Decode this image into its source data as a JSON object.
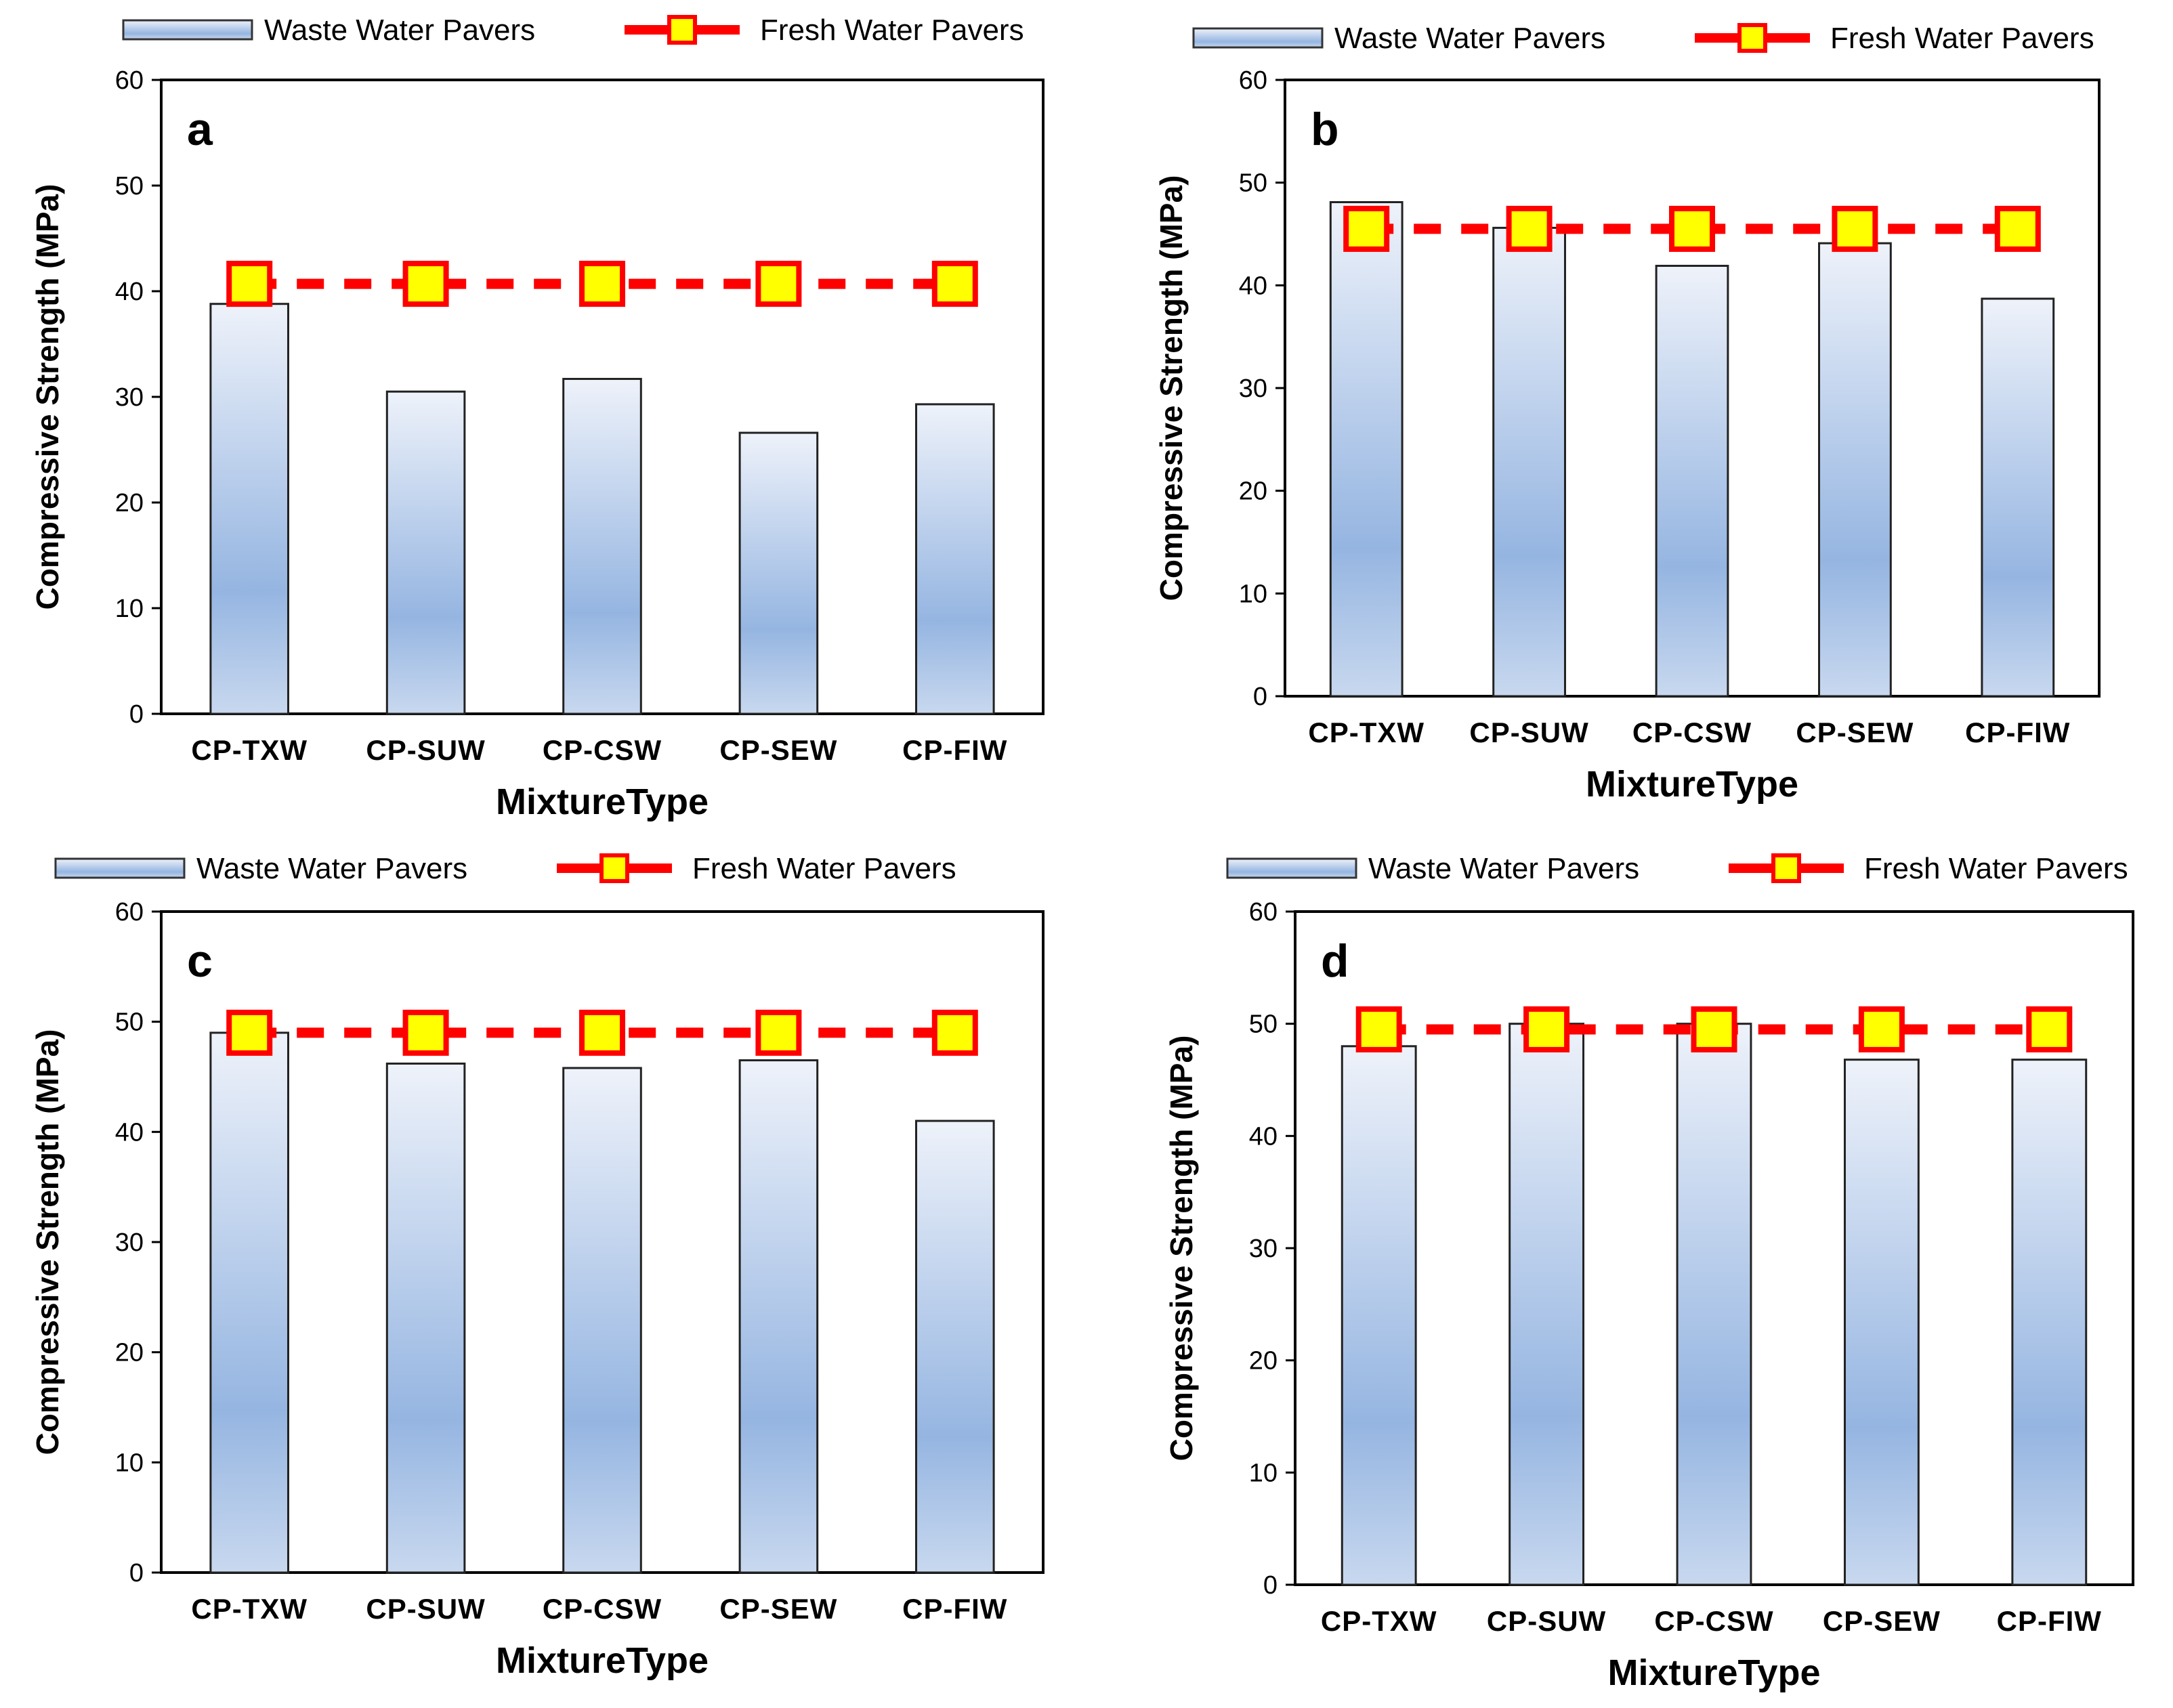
{
  "legend": {
    "bar_label": "Waste Water Pavers",
    "line_label": "Fresh Water Pavers"
  },
  "colors": {
    "bar_top": "#eef2fa",
    "bar_mid": "#95b5e1",
    "bar_bottom": "#c8d8ef",
    "line": "#ff0000",
    "marker_fill": "#ffff00",
    "marker_edge": "#ff0000"
  },
  "chart_data": [
    {
      "type": "bar",
      "panel_label": "a",
      "categories": [
        "CP-TXW",
        "CP-SUW",
        "CP-CSW",
        "CP-SEW",
        "CP-FIW"
      ],
      "series": [
        {
          "name": "Waste Water Pavers",
          "values": [
            38.8,
            30.5,
            31.7,
            26.6,
            29.3
          ]
        },
        {
          "name": "Fresh Water Pavers",
          "values": [
            40.7,
            40.7,
            40.7,
            40.7,
            40.7
          ]
        }
      ],
      "xlabel": "MixtureType",
      "ylabel": "Compressive Strength (MPa)",
      "ylim": [
        0,
        60
      ],
      "yticks": [
        0,
        10,
        20,
        30,
        40,
        50,
        60
      ],
      "grid": false,
      "legend_position": "top"
    },
    {
      "type": "bar",
      "panel_label": "b",
      "categories": [
        "CP-TXW",
        "CP-SUW",
        "CP-CSW",
        "CP-SEW",
        "CP-FIW"
      ],
      "series": [
        {
          "name": "Waste Water Pavers",
          "values": [
            48.1,
            45.6,
            41.9,
            44.1,
            38.7
          ]
        },
        {
          "name": "Fresh Water Pavers",
          "values": [
            45.5,
            45.5,
            45.5,
            45.5,
            45.5
          ]
        }
      ],
      "xlabel": "MixtureType",
      "ylabel": "Compressive Strength (MPa)",
      "ylim": [
        0,
        60
      ],
      "yticks": [
        0,
        10,
        20,
        30,
        40,
        50,
        60
      ],
      "grid": false,
      "legend_position": "top"
    },
    {
      "type": "bar",
      "panel_label": "c",
      "categories": [
        "CP-TXW",
        "CP-SUW",
        "CP-CSW",
        "CP-SEW",
        "CP-FIW"
      ],
      "series": [
        {
          "name": "Waste Water Pavers",
          "values": [
            49.0,
            46.2,
            45.8,
            46.5,
            41.0
          ]
        },
        {
          "name": "Fresh Water Pavers",
          "values": [
            49.0,
            49.0,
            49.0,
            49.0,
            49.0
          ]
        }
      ],
      "xlabel": "MixtureType",
      "ylabel": "Compressive Strength (MPa)",
      "ylim": [
        0,
        60
      ],
      "yticks": [
        0,
        10,
        20,
        30,
        40,
        50,
        60
      ],
      "grid": false,
      "legend_position": "top"
    },
    {
      "type": "bar",
      "panel_label": "d",
      "categories": [
        "CP-TXW",
        "CP-SUW",
        "CP-CSW",
        "CP-SEW",
        "CP-FIW"
      ],
      "series": [
        {
          "name": "Waste Water Pavers",
          "values": [
            48.0,
            50.0,
            50.0,
            46.8,
            46.8
          ]
        },
        {
          "name": "Fresh Water Pavers",
          "values": [
            49.5,
            49.5,
            49.5,
            49.5,
            49.5
          ]
        }
      ],
      "xlabel": "MixtureType",
      "ylabel": "Compressive Strength (MPa)",
      "ylim": [
        0,
        60
      ],
      "yticks": [
        0,
        10,
        20,
        30,
        40,
        50,
        60
      ],
      "grid": false,
      "legend_position": "top"
    }
  ]
}
